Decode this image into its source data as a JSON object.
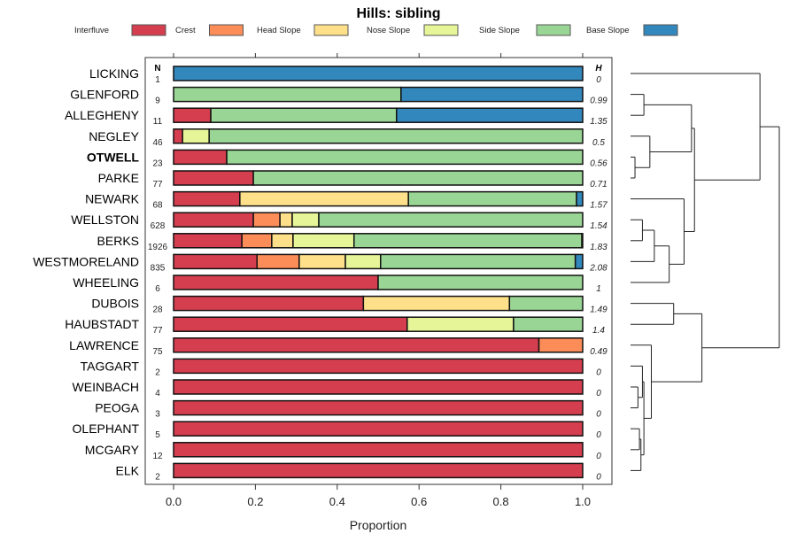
{
  "chart_data": {
    "type": "bar",
    "stacked": true,
    "orientation": "horizontal",
    "title": "Hills: sibling",
    "xlabel": "Proportion",
    "ylabel": "",
    "xlim": [
      0,
      1
    ],
    "x_ticks": [
      "0.0",
      "0.2",
      "0.4",
      "0.6",
      "0.8",
      "1.0"
    ],
    "n_header": "N",
    "h_header": "H",
    "legend_position": "top",
    "legend": [
      {
        "name": "Interfluve",
        "color": "#D53E4F"
      },
      {
        "name": "Crest",
        "color": "#FC8D59"
      },
      {
        "name": "Head Slope",
        "color": "#FEE08B"
      },
      {
        "name": "Nose Slope",
        "color": "#E6F598"
      },
      {
        "name": "Side Slope",
        "color": "#99D594"
      },
      {
        "name": "Base Slope",
        "color": "#3288BD"
      }
    ],
    "categories": [
      "LICKING",
      "GLENFORD",
      "ALLEGHENY",
      "NEGLEY",
      "OTWELL",
      "PARKE",
      "NEWARK",
      "WELLSTON",
      "BERKS",
      "WESTMORELAND",
      "WHEELING",
      "DUBOIS",
      "HAUBSTADT",
      "LAWRENCE",
      "TAGGART",
      "WEINBACH",
      "PEOGA",
      "OLEPHANT",
      "MCGARY",
      "ELK"
    ],
    "highlight": "OTWELL",
    "n": [
      "1",
      "9",
      "11",
      "46",
      "23",
      "77",
      "68",
      "628",
      "1926",
      "835",
      "6",
      "28",
      "77",
      "75",
      "2",
      "4",
      "3",
      "5",
      "12",
      "2"
    ],
    "h": [
      "0",
      "0.99",
      "1.35",
      "0.5",
      "0.56",
      "0.71",
      "1.57",
      "1.54",
      "1.83",
      "2.08",
      "1",
      "1.49",
      "1.4",
      "0.49",
      "0",
      "0",
      "0",
      "0",
      "0",
      "0"
    ],
    "series": [
      {
        "name": "Interfluve",
        "values": [
          0,
          0,
          0.091,
          0.022,
          0.13,
          0.195,
          0.162,
          0.195,
          0.167,
          0.204,
          0.5,
          0.464,
          0.571,
          0.893,
          1,
          1,
          1,
          1,
          1,
          1
        ]
      },
      {
        "name": "Crest",
        "values": [
          0,
          0,
          0,
          0,
          0,
          0,
          0,
          0.065,
          0.073,
          0.103,
          0,
          0,
          0,
          0.107,
          0,
          0,
          0,
          0,
          0,
          0
        ]
      },
      {
        "name": "Head Slope",
        "values": [
          0,
          0,
          0,
          0,
          0,
          0,
          0.412,
          0.03,
          0.052,
          0.113,
          0,
          0.357,
          0,
          0,
          0,
          0,
          0,
          0,
          0,
          0
        ]
      },
      {
        "name": "Nose Slope",
        "values": [
          0,
          0,
          0,
          0.065,
          0,
          0,
          0,
          0.065,
          0.149,
          0.086,
          0,
          0,
          0.26,
          0,
          0,
          0,
          0,
          0,
          0,
          0
        ]
      },
      {
        "name": "Side Slope",
        "values": [
          0,
          0.556,
          0.454,
          0.913,
          0.87,
          0.805,
          0.411,
          0.645,
          0.557,
          0.476,
          0.5,
          0.179,
          0.169,
          0,
          0,
          0,
          0,
          0,
          0,
          0
        ]
      },
      {
        "name": "Base Slope",
        "values": [
          1,
          0.444,
          0.455,
          0,
          0,
          0,
          0.015,
          0,
          0.002,
          0.018,
          0,
          0,
          0,
          0,
          0,
          0,
          0,
          0,
          0,
          0
        ]
      }
    ],
    "dendrogram": {
      "leaf_order": [
        "LICKING",
        "GLENFORD",
        "ALLEGHENY",
        "NEGLEY",
        "OTWELL",
        "PARKE",
        "NEWARK",
        "WELLSTON",
        "BERKS",
        "WESTMORELAND",
        "WHEELING",
        "DUBOIS",
        "HAUBSTADT",
        "LAWRENCE",
        "TAGGART",
        "WEINBACH",
        "PEOGA",
        "OLEPHANT",
        "MCGARY",
        "ELK"
      ],
      "merges": [
        {
          "a": "GLENFORD",
          "b": "ALLEGHENY",
          "height": 0.09
        },
        {
          "a": "OTWELL",
          "b": "PARKE",
          "height": 0.03
        },
        {
          "a": "NEGLEY",
          "b": "OTWELL+PARKE",
          "height": 0.13
        },
        {
          "a": "GLENFORD+ALLEGHENY",
          "b": "NEGLEY+OTWELL+PARKE",
          "height": 0.41
        },
        {
          "a": "WELLSTON",
          "b": "BERKS",
          "height": 0.08
        },
        {
          "a": "WELLSTON+BERKS",
          "b": "WESTMORELAND",
          "height": 0.16
        },
        {
          "a": "WELLSTON+BERKS+WESTMORELAND",
          "b": "WHEELING",
          "height": 0.26
        },
        {
          "a": "NEWARK",
          "b": "WELLSTON+BERKS+WESTMORELAND+WHEELING",
          "height": 0.36
        },
        {
          "a": "GLENFORD..PARKE",
          "b": "NEWARK..WHEELING",
          "height": 0.43
        },
        {
          "a": "LICKING",
          "b": "GLENFORD..WHEELING",
          "height": 0.87
        },
        {
          "a": "DUBOIS",
          "b": "HAUBSTADT",
          "height": 0.29
        },
        {
          "a": "WEINBACH",
          "b": "PEOGA",
          "height": 0.05
        },
        {
          "a": "TAGGART",
          "b": "WEINBACH+PEOGA",
          "height": 0.08
        },
        {
          "a": "OLEPHANT",
          "b": "MCGARY",
          "height": 0.06
        },
        {
          "a": "OLEPHANT+MCGARY",
          "b": "ELK",
          "height": 0.07
        },
        {
          "a": "TAGGART+WEINBACH+PEOGA",
          "b": "OLEPHANT+MCGARY+ELK",
          "height": 0.09
        },
        {
          "a": "LAWRENCE",
          "b": "TAGGART..ELK",
          "height": 0.14
        },
        {
          "a": "DUBOIS+HAUBSTADT",
          "b": "LAWRENCE..ELK",
          "height": 0.48
        },
        {
          "a": "LICKING..WHEELING",
          "b": "DUBOIS..ELK",
          "height": 1.0
        }
      ]
    }
  }
}
